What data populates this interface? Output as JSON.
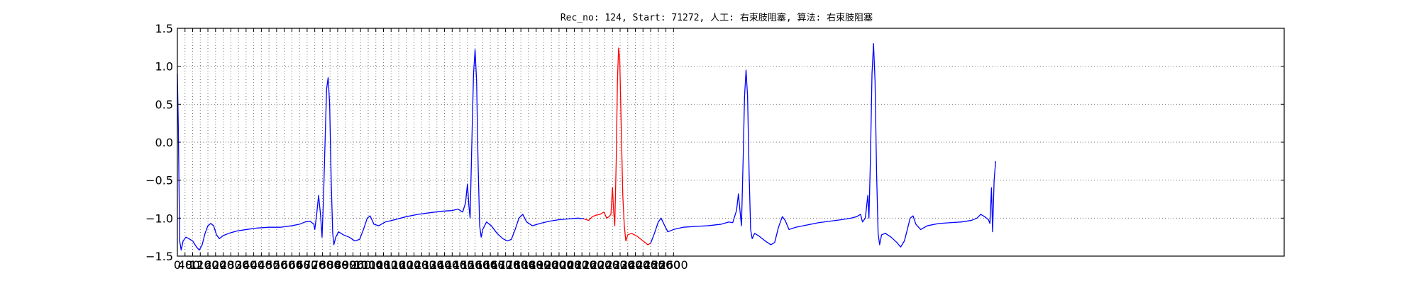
{
  "chart_data": {
    "type": "line",
    "title": "Rec_no: 124, Start: 71272, 人工: 右束肢阻塞, 算法: 右束肢阻塞",
    "xlabel": "",
    "ylabel": "",
    "xlim": [
      0,
      5800
    ],
    "ylim": [
      -1.5,
      1.5
    ],
    "grid": true,
    "x_ticks": [
      0,
      40,
      80,
      120,
      160,
      200,
      240,
      280,
      320,
      360,
      400,
      440,
      480,
      520,
      560,
      600,
      640,
      680,
      720,
      760,
      800,
      840,
      880,
      920,
      960,
      1000,
      1040,
      1080,
      1120,
      1160,
      1200,
      1240,
      1280,
      1320,
      1360,
      1400,
      1440,
      1480,
      1520,
      1560,
      1600,
      1640,
      1680,
      1720,
      1760,
      1800,
      1840,
      1880,
      1920,
      1960,
      2000,
      2040,
      2080,
      2120,
      2160,
      2200,
      2240,
      2280,
      2320,
      2360,
      2400,
      2440,
      2480,
      2520,
      2560,
      2600
    ],
    "x_tick_labels": [
      "0",
      "40",
      "80",
      "120",
      "160",
      "200",
      "240",
      "280",
      "320",
      "360",
      "400",
      "440",
      "480",
      "520",
      "560",
      "600",
      "640",
      "680",
      "720",
      "760",
      "800",
      "840",
      "880",
      "920",
      "960",
      "1000",
      "1040",
      "1080",
      "1120",
      "1160",
      "1200",
      "1240",
      "1280",
      "1320",
      "1360",
      "1400",
      "1440",
      "1480",
      "1520",
      "1560",
      "1600",
      "1640",
      "1680",
      "1720",
      "1760",
      "1800",
      "1840",
      "1880",
      "1920",
      "1960",
      "2000",
      "2040",
      "2080",
      "2120",
      "2160",
      "2200",
      "2240",
      "2280",
      "2320",
      "2360",
      "2400",
      "2440",
      "2480",
      "2520",
      "2560",
      "2600"
    ],
    "y_ticks": [
      -1.5,
      -1.0,
      -0.5,
      0.0,
      0.5,
      1.0,
      1.5
    ],
    "y_tick_labels": [
      "−1.5",
      "−1.0",
      "−0.5",
      "0.0",
      "0.5",
      "1.0",
      "1.5"
    ],
    "series": [
      {
        "color": "#0000ff",
        "points": [
          [
            0,
            0.9
          ],
          [
            5,
            0.2
          ],
          [
            12,
            -1.3
          ],
          [
            20,
            -1.42
          ],
          [
            30,
            -1.3
          ],
          [
            45,
            -1.25
          ],
          [
            60,
            -1.27
          ],
          [
            80,
            -1.3
          ],
          [
            100,
            -1.38
          ],
          [
            115,
            -1.42
          ],
          [
            130,
            -1.35
          ],
          [
            145,
            -1.2
          ],
          [
            160,
            -1.1
          ],
          [
            175,
            -1.07
          ],
          [
            190,
            -1.1
          ],
          [
            205,
            -1.22
          ],
          [
            220,
            -1.27
          ],
          [
            240,
            -1.23
          ],
          [
            270,
            -1.2
          ],
          [
            310,
            -1.17
          ],
          [
            360,
            -1.15
          ],
          [
            420,
            -1.13
          ],
          [
            480,
            -1.12
          ],
          [
            540,
            -1.12
          ],
          [
            600,
            -1.1
          ],
          [
            640,
            -1.08
          ],
          [
            670,
            -1.05
          ],
          [
            695,
            -1.04
          ],
          [
            715,
            -1.08
          ],
          [
            720,
            -1.15
          ],
          [
            730,
            -0.95
          ],
          [
            740,
            -0.7
          ],
          [
            750,
            -0.95
          ],
          [
            758,
            -1.25
          ],
          [
            765,
            -0.8
          ],
          [
            775,
            0.1
          ],
          [
            782,
            0.7
          ],
          [
            790,
            0.85
          ],
          [
            798,
            0.5
          ],
          [
            806,
            -0.5
          ],
          [
            814,
            -1.2
          ],
          [
            820,
            -1.35
          ],
          [
            830,
            -1.25
          ],
          [
            845,
            -1.18
          ],
          [
            870,
            -1.22
          ],
          [
            900,
            -1.25
          ],
          [
            930,
            -1.3
          ],
          [
            955,
            -1.28
          ],
          [
            975,
            -1.15
          ],
          [
            995,
            -1.0
          ],
          [
            1010,
            -0.97
          ],
          [
            1030,
            -1.08
          ],
          [
            1055,
            -1.1
          ],
          [
            1090,
            -1.05
          ],
          [
            1140,
            -1.02
          ],
          [
            1200,
            -0.98
          ],
          [
            1260,
            -0.95
          ],
          [
            1320,
            -0.93
          ],
          [
            1380,
            -0.91
          ],
          [
            1440,
            -0.9
          ],
          [
            1470,
            -0.88
          ],
          [
            1495,
            -0.92
          ],
          [
            1510,
            -0.8
          ],
          [
            1520,
            -0.55
          ],
          [
            1528,
            -0.85
          ],
          [
            1534,
            -1.0
          ],
          [
            1545,
            0.2
          ],
          [
            1552,
            0.9
          ],
          [
            1560,
            1.22
          ],
          [
            1568,
            0.8
          ],
          [
            1576,
            -0.3
          ],
          [
            1584,
            -1.1
          ],
          [
            1592,
            -1.25
          ],
          [
            1600,
            -1.15
          ],
          [
            1620,
            -1.05
          ],
          [
            1645,
            -1.1
          ],
          [
            1675,
            -1.2
          ],
          [
            1705,
            -1.27
          ],
          [
            1730,
            -1.3
          ],
          [
            1750,
            -1.28
          ],
          [
            1770,
            -1.15
          ],
          [
            1790,
            -1.0
          ],
          [
            1810,
            -0.95
          ],
          [
            1830,
            -1.05
          ],
          [
            1860,
            -1.1
          ],
          [
            1900,
            -1.07
          ],
          [
            1950,
            -1.04
          ],
          [
            2000,
            -1.02
          ],
          [
            2050,
            -1.01
          ],
          [
            2100,
            -1.0
          ],
          [
            2130,
            -1.01
          ]
        ]
      },
      {
        "color": "#ff0000",
        "points": [
          [
            2130,
            -1.01
          ],
          [
            2155,
            -1.03
          ],
          [
            2175,
            -0.98
          ],
          [
            2195,
            -0.96
          ],
          [
            2215,
            -0.95
          ],
          [
            2235,
            -0.92
          ],
          [
            2250,
            -1.0
          ],
          [
            2262,
            -0.98
          ],
          [
            2272,
            -0.95
          ],
          [
            2280,
            -0.6
          ],
          [
            2286,
            -0.9
          ],
          [
            2292,
            -1.1
          ],
          [
            2300,
            -0.2
          ],
          [
            2306,
            0.8
          ],
          [
            2312,
            1.24
          ],
          [
            2318,
            1.1
          ],
          [
            2326,
            0.2
          ],
          [
            2334,
            -0.7
          ],
          [
            2342,
            -1.1
          ],
          [
            2350,
            -1.3
          ],
          [
            2360,
            -1.22
          ],
          [
            2380,
            -1.2
          ],
          [
            2410,
            -1.24
          ],
          [
            2440,
            -1.3
          ],
          [
            2465,
            -1.35
          ],
          [
            2480,
            -1.33
          ]
        ]
      },
      {
        "color": "#0000ff",
        "points": [
          [
            2480,
            -1.33
          ],
          [
            2500,
            -1.2
          ],
          [
            2520,
            -1.05
          ],
          [
            2535,
            -1.0
          ],
          [
            2550,
            -1.08
          ],
          [
            2570,
            -1.18
          ],
          [
            2600,
            -1.15
          ],
          [
            2650,
            -1.12
          ],
          [
            2710,
            -1.11
          ],
          [
            2780,
            -1.1
          ],
          [
            2850,
            -1.08
          ],
          [
            2890,
            -1.05
          ],
          [
            2910,
            -1.06
          ],
          [
            2930,
            -0.9
          ],
          [
            2940,
            -0.68
          ],
          [
            2950,
            -0.95
          ],
          [
            2956,
            -1.1
          ],
          [
            2965,
            -0.2
          ],
          [
            2972,
            0.6
          ],
          [
            2980,
            0.95
          ],
          [
            2988,
            0.6
          ],
          [
            2996,
            -0.4
          ],
          [
            3004,
            -1.15
          ],
          [
            3012,
            -1.27
          ],
          [
            3025,
            -1.2
          ],
          [
            3050,
            -1.24
          ],
          [
            3080,
            -1.3
          ],
          [
            3110,
            -1.35
          ],
          [
            3130,
            -1.32
          ],
          [
            3150,
            -1.12
          ],
          [
            3170,
            -0.98
          ],
          [
            3185,
            -1.03
          ],
          [
            3205,
            -1.15
          ],
          [
            3240,
            -1.12
          ],
          [
            3300,
            -1.09
          ],
          [
            3360,
            -1.06
          ],
          [
            3420,
            -1.04
          ],
          [
            3480,
            -1.02
          ],
          [
            3530,
            -1.0
          ],
          [
            3560,
            -0.98
          ],
          [
            3580,
            -0.95
          ],
          [
            3590,
            -1.05
          ],
          [
            3605,
            -1.0
          ],
          [
            3618,
            -0.7
          ],
          [
            3624,
            -1.0
          ],
          [
            3632,
            -0.2
          ],
          [
            3640,
            0.9
          ],
          [
            3648,
            1.3
          ],
          [
            3656,
            0.8
          ],
          [
            3664,
            -0.4
          ],
          [
            3672,
            -1.2
          ],
          [
            3680,
            -1.35
          ],
          [
            3690,
            -1.22
          ],
          [
            3710,
            -1.2
          ],
          [
            3740,
            -1.25
          ],
          [
            3770,
            -1.32
          ],
          [
            3790,
            -1.38
          ],
          [
            3810,
            -1.3
          ],
          [
            3825,
            -1.15
          ],
          [
            3840,
            -1.0
          ],
          [
            3855,
            -0.97
          ],
          [
            3870,
            -1.08
          ],
          [
            3895,
            -1.15
          ],
          [
            3930,
            -1.1
          ],
          [
            3990,
            -1.07
          ],
          [
            4050,
            -1.06
          ],
          [
            4110,
            -1.05
          ],
          [
            4160,
            -1.03
          ],
          [
            4190,
            -1.0
          ],
          [
            4210,
            -0.95
          ],
          [
            4230,
            -0.98
          ],
          [
            4250,
            -1.02
          ],
          [
            4258,
            -1.07
          ],
          [
            4266,
            -0.6
          ],
          [
            4272,
            -1.18
          ],
          [
            4280,
            -0.5
          ],
          [
            4288,
            -0.25
          ]
        ]
      }
    ]
  }
}
